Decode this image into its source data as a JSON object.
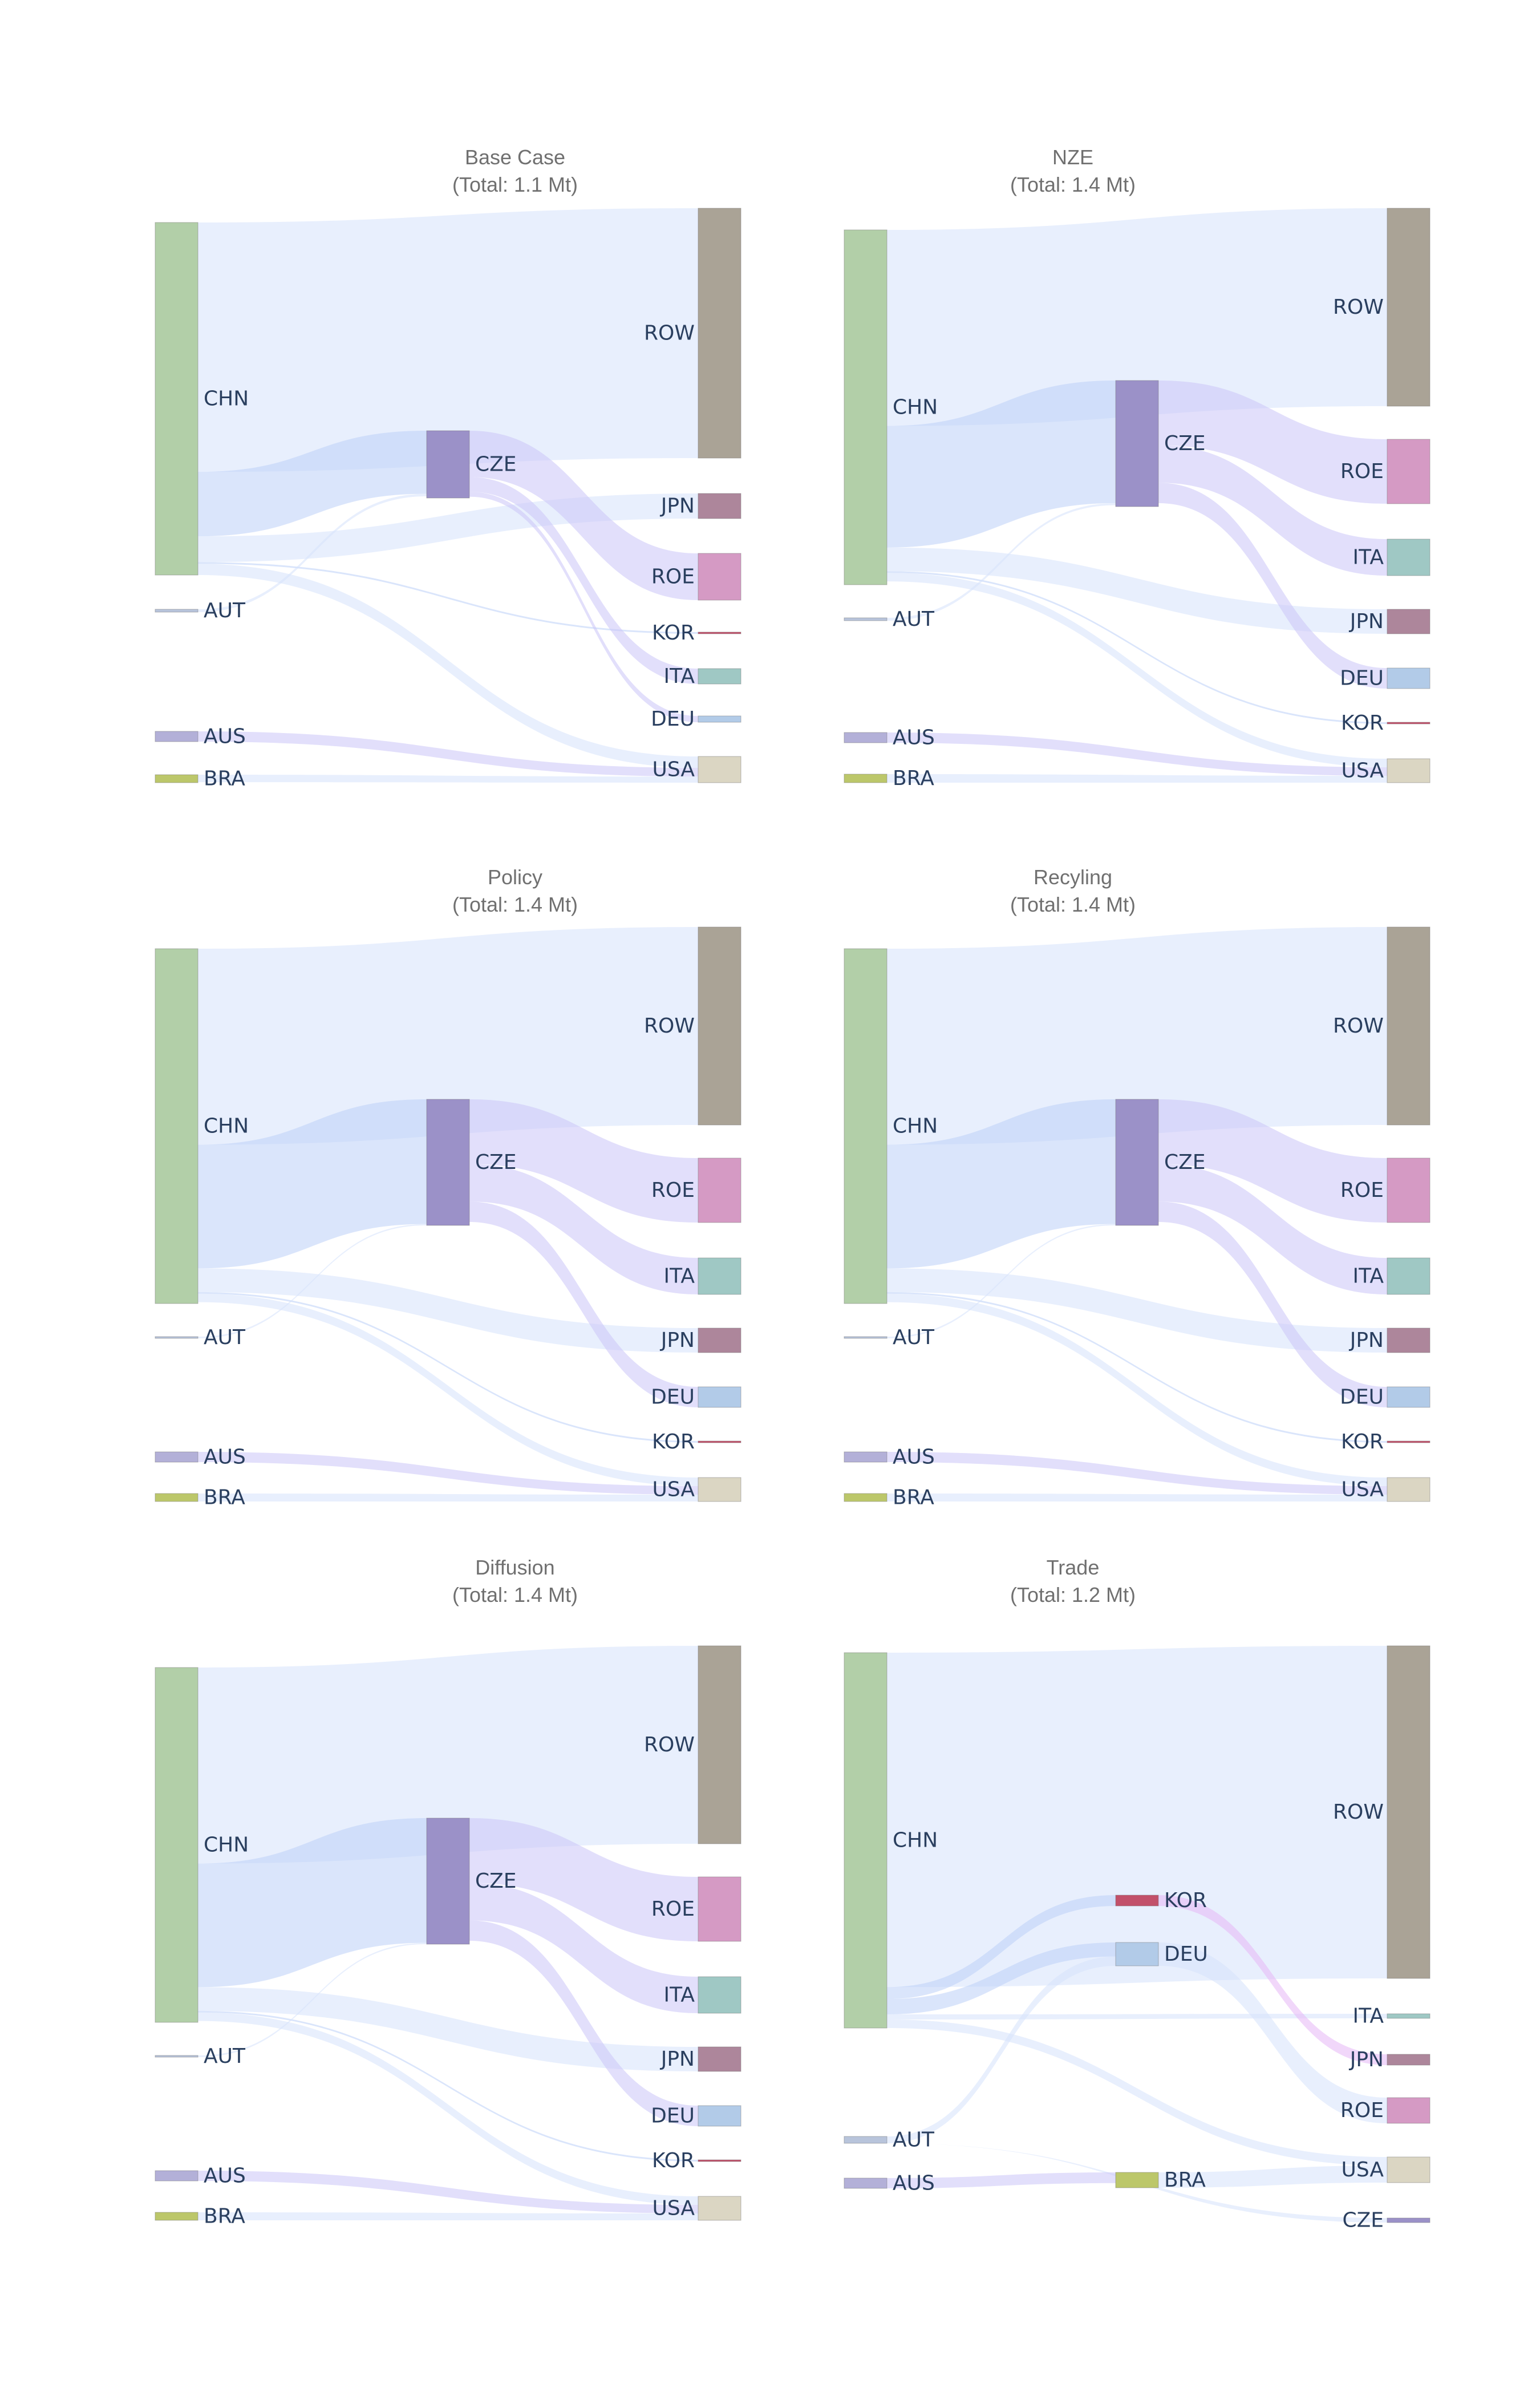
{
  "colors": {
    "CHN": "#b2cfa8",
    "AUT": "#b8c4db",
    "AUS": "#b3b0d8",
    "BRA": "#bcc76a",
    "CZE": "#9b91c8",
    "ROW": "#aaa396",
    "JPN": "#ad869b",
    "ROE": "#d59ac4",
    "KOR": "#c2506a",
    "ITA": "#9fc8c4",
    "DEU": "#b2cbe8",
    "USA": "#dbd6c3",
    "link_light": "#d6e2fb",
    "link_blue": "#bcd0f8",
    "link_purple": "#cbc4f8",
    "link_pink": "#e5b6f5"
  },
  "panels": [
    {
      "title": "Base Case",
      "subtitle": "(Total: 1.1 Mt)",
      "nodes": [
        {
          "id": "CHN",
          "label": "CHN",
          "col": 0,
          "value": 0.82
        },
        {
          "id": "AUT",
          "label": "AUT",
          "col": 0,
          "value": 0.006
        },
        {
          "id": "AUS",
          "label": "AUS",
          "col": 0,
          "value": 0.02
        },
        {
          "id": "BRA",
          "label": "BRA",
          "col": 0,
          "value": 0.015
        },
        {
          "id": "CZE",
          "label": "CZE",
          "col": 1,
          "value": 0.16
        },
        {
          "id": "ROW",
          "label": "ROW",
          "col": 2,
          "value": 0.58
        },
        {
          "id": "JPN",
          "label": "JPN",
          "col": 2,
          "value": 0.06
        },
        {
          "id": "ROE",
          "label": "ROE",
          "col": 2,
          "value": 0.11
        },
        {
          "id": "KOR",
          "label": "KOR",
          "col": 2,
          "value": 0.004
        },
        {
          "id": "ITA",
          "label": "ITA",
          "col": 2,
          "value": 0.035
        },
        {
          "id": "DEU",
          "label": "DEU",
          "col": 2,
          "value": 0.012
        },
        {
          "id": "USA",
          "label": "USA",
          "col": 2,
          "value": 0.06
        }
      ],
      "links": [
        {
          "source": "CHN",
          "target": "ROW",
          "value": 0.58
        },
        {
          "source": "CHN",
          "target": "CZE",
          "value": 0.15
        },
        {
          "source": "CHN",
          "target": "JPN",
          "value": 0.06
        },
        {
          "source": "CHN",
          "target": "KOR",
          "value": 0.004
        },
        {
          "source": "CHN",
          "target": "USA",
          "value": 0.026
        },
        {
          "source": "AUT",
          "target": "CZE",
          "value": 0.006
        },
        {
          "source": "AUS",
          "target": "USA",
          "value": 0.02
        },
        {
          "source": "BRA",
          "target": "USA",
          "value": 0.014
        },
        {
          "source": "CZE",
          "target": "ROE",
          "value": 0.11
        },
        {
          "source": "CZE",
          "target": "ITA",
          "value": 0.035
        },
        {
          "source": "CZE",
          "target": "DEU",
          "value": 0.012
        }
      ]
    },
    {
      "title": "NZE",
      "subtitle": "(Total: 1.4 Mt)",
      "nodes": [
        {
          "id": "CHN",
          "label": "CHN",
          "col": 0,
          "value": 1.05
        },
        {
          "id": "AUT",
          "label": "AUT",
          "col": 0,
          "value": 0.006
        },
        {
          "id": "AUS",
          "label": "AUS",
          "col": 0,
          "value": 0.025
        },
        {
          "id": "BRA",
          "label": "BRA",
          "col": 0,
          "value": 0.02
        },
        {
          "id": "CZE",
          "label": "CZE",
          "col": 1,
          "value": 0.37
        },
        {
          "id": "ROW",
          "label": "ROW",
          "col": 2,
          "value": 0.58
        },
        {
          "id": "ROE",
          "label": "ROE",
          "col": 2,
          "value": 0.19
        },
        {
          "id": "ITA",
          "label": "ITA",
          "col": 2,
          "value": 0.11
        },
        {
          "id": "JPN",
          "label": "JPN",
          "col": 2,
          "value": 0.07
        },
        {
          "id": "DEU",
          "label": "DEU",
          "col": 2,
          "value": 0.06
        },
        {
          "id": "KOR",
          "label": "KOR",
          "col": 2,
          "value": 0.005
        },
        {
          "id": "USA",
          "label": "USA",
          "col": 2,
          "value": 0.07
        }
      ],
      "links": [
        {
          "source": "CHN",
          "target": "ROW",
          "value": 0.58
        },
        {
          "source": "CHN",
          "target": "CZE",
          "value": 0.36
        },
        {
          "source": "CHN",
          "target": "JPN",
          "value": 0.07
        },
        {
          "source": "CHN",
          "target": "KOR",
          "value": 0.005
        },
        {
          "source": "CHN",
          "target": "USA",
          "value": 0.025
        },
        {
          "source": "AUT",
          "target": "CZE",
          "value": 0.006
        },
        {
          "source": "AUS",
          "target": "USA",
          "value": 0.025
        },
        {
          "source": "BRA",
          "target": "USA",
          "value": 0.02
        },
        {
          "source": "CZE",
          "target": "ROE",
          "value": 0.19
        },
        {
          "source": "CZE",
          "target": "ITA",
          "value": 0.11
        },
        {
          "source": "CZE",
          "target": "DEU",
          "value": 0.06
        }
      ]
    },
    {
      "title": "Policy",
      "subtitle": "(Total: 1.4 Mt)",
      "nodes": [
        {
          "id": "CHN",
          "label": "CHN",
          "col": 0,
          "value": 1.05
        },
        {
          "id": "AUT",
          "label": "AUT",
          "col": 0,
          "value": 0.004
        },
        {
          "id": "AUS",
          "label": "AUS",
          "col": 0,
          "value": 0.025
        },
        {
          "id": "BRA",
          "label": "BRA",
          "col": 0,
          "value": 0.02
        },
        {
          "id": "CZE",
          "label": "CZE",
          "col": 1,
          "value": 0.37
        },
        {
          "id": "ROW",
          "label": "ROW",
          "col": 2,
          "value": 0.58
        },
        {
          "id": "ROE",
          "label": "ROE",
          "col": 2,
          "value": 0.19
        },
        {
          "id": "ITA",
          "label": "ITA",
          "col": 2,
          "value": 0.11
        },
        {
          "id": "JPN",
          "label": "JPN",
          "col": 2,
          "value": 0.07
        },
        {
          "id": "DEU",
          "label": "DEU",
          "col": 2,
          "value": 0.06
        },
        {
          "id": "KOR",
          "label": "KOR",
          "col": 2,
          "value": 0.005
        },
        {
          "id": "USA",
          "label": "USA",
          "col": 2,
          "value": 0.07
        }
      ],
      "links": [
        {
          "source": "CHN",
          "target": "ROW",
          "value": 0.58
        },
        {
          "source": "CHN",
          "target": "CZE",
          "value": 0.366
        },
        {
          "source": "CHN",
          "target": "JPN",
          "value": 0.07
        },
        {
          "source": "CHN",
          "target": "KOR",
          "value": 0.005
        },
        {
          "source": "CHN",
          "target": "USA",
          "value": 0.025
        },
        {
          "source": "AUT",
          "target": "CZE",
          "value": 0.004
        },
        {
          "source": "AUS",
          "target": "USA",
          "value": 0.025
        },
        {
          "source": "BRA",
          "target": "USA",
          "value": 0.02
        },
        {
          "source": "CZE",
          "target": "ROE",
          "value": 0.19
        },
        {
          "source": "CZE",
          "target": "ITA",
          "value": 0.11
        },
        {
          "source": "CZE",
          "target": "DEU",
          "value": 0.06
        }
      ]
    },
    {
      "title": "Recyling",
      "subtitle": "(Total: 1.4 Mt)",
      "nodes": [
        {
          "id": "CHN",
          "label": "CHN",
          "col": 0,
          "value": 1.05
        },
        {
          "id": "AUT",
          "label": "AUT",
          "col": 0,
          "value": 0.004
        },
        {
          "id": "AUS",
          "label": "AUS",
          "col": 0,
          "value": 0.025
        },
        {
          "id": "BRA",
          "label": "BRA",
          "col": 0,
          "value": 0.02
        },
        {
          "id": "CZE",
          "label": "CZE",
          "col": 1,
          "value": 0.37
        },
        {
          "id": "ROW",
          "label": "ROW",
          "col": 2,
          "value": 0.58
        },
        {
          "id": "ROE",
          "label": "ROE",
          "col": 2,
          "value": 0.19
        },
        {
          "id": "ITA",
          "label": "ITA",
          "col": 2,
          "value": 0.11
        },
        {
          "id": "JPN",
          "label": "JPN",
          "col": 2,
          "value": 0.07
        },
        {
          "id": "DEU",
          "label": "DEU",
          "col": 2,
          "value": 0.06
        },
        {
          "id": "KOR",
          "label": "KOR",
          "col": 2,
          "value": 0.005
        },
        {
          "id": "USA",
          "label": "USA",
          "col": 2,
          "value": 0.07
        }
      ],
      "links": [
        {
          "source": "CHN",
          "target": "ROW",
          "value": 0.58
        },
        {
          "source": "CHN",
          "target": "CZE",
          "value": 0.366
        },
        {
          "source": "CHN",
          "target": "JPN",
          "value": 0.07
        },
        {
          "source": "CHN",
          "target": "KOR",
          "value": 0.005
        },
        {
          "source": "CHN",
          "target": "USA",
          "value": 0.025
        },
        {
          "source": "AUT",
          "target": "CZE",
          "value": 0.004
        },
        {
          "source": "AUS",
          "target": "USA",
          "value": 0.025
        },
        {
          "source": "BRA",
          "target": "USA",
          "value": 0.02
        },
        {
          "source": "CZE",
          "target": "ROE",
          "value": 0.19
        },
        {
          "source": "CZE",
          "target": "ITA",
          "value": 0.11
        },
        {
          "source": "CZE",
          "target": "DEU",
          "value": 0.06
        }
      ]
    },
    {
      "title": "Diffusion",
      "subtitle": "(Total: 1.4 Mt)",
      "nodes": [
        {
          "id": "CHN",
          "label": "CHN",
          "col": 0,
          "value": 1.05
        },
        {
          "id": "AUT",
          "label": "AUT",
          "col": 0,
          "value": 0.004
        },
        {
          "id": "AUS",
          "label": "AUS",
          "col": 0,
          "value": 0.025
        },
        {
          "id": "BRA",
          "label": "BRA",
          "col": 0,
          "value": 0.02
        },
        {
          "id": "CZE",
          "label": "CZE",
          "col": 1,
          "value": 0.37
        },
        {
          "id": "ROW",
          "label": "ROW",
          "col": 2,
          "value": 0.58
        },
        {
          "id": "ROE",
          "label": "ROE",
          "col": 2,
          "value": 0.19
        },
        {
          "id": "ITA",
          "label": "ITA",
          "col": 2,
          "value": 0.11
        },
        {
          "id": "JPN",
          "label": "JPN",
          "col": 2,
          "value": 0.07
        },
        {
          "id": "DEU",
          "label": "DEU",
          "col": 2,
          "value": 0.06
        },
        {
          "id": "KOR",
          "label": "KOR",
          "col": 2,
          "value": 0.005
        },
        {
          "id": "USA",
          "label": "USA",
          "col": 2,
          "value": 0.07
        }
      ],
      "links": [
        {
          "source": "CHN",
          "target": "ROW",
          "value": 0.58
        },
        {
          "source": "CHN",
          "target": "CZE",
          "value": 0.366
        },
        {
          "source": "CHN",
          "target": "JPN",
          "value": 0.07
        },
        {
          "source": "CHN",
          "target": "KOR",
          "value": 0.005
        },
        {
          "source": "CHN",
          "target": "USA",
          "value": 0.025
        },
        {
          "source": "AUT",
          "target": "CZE",
          "value": 0.004
        },
        {
          "source": "AUS",
          "target": "USA",
          "value": 0.025
        },
        {
          "source": "BRA",
          "target": "USA",
          "value": 0.02
        },
        {
          "source": "CZE",
          "target": "ROE",
          "value": 0.19
        },
        {
          "source": "CZE",
          "target": "ITA",
          "value": 0.11
        },
        {
          "source": "CZE",
          "target": "DEU",
          "value": 0.06
        }
      ]
    },
    {
      "title": "Trade",
      "subtitle": "(Total: 1.2 Mt)",
      "nodes": [
        {
          "id": "CHN",
          "label": "CHN",
          "col": 0,
          "value": 1.1
        },
        {
          "id": "AUT",
          "label": "AUT",
          "col": 0,
          "value": 0.03
        },
        {
          "id": "AUS",
          "label": "AUS",
          "col": 0,
          "value": 0.035
        },
        {
          "id": "KOR",
          "label": "KOR",
          "col": 1,
          "value": 0.035
        },
        {
          "id": "DEU",
          "label": "DEU",
          "col": 1,
          "value": 0.075
        },
        {
          "id": "BRA",
          "label": "BRA",
          "col": 1,
          "value": 0.05
        },
        {
          "id": "ROW",
          "label": "ROW",
          "col": 2,
          "value": 0.98
        },
        {
          "id": "ITA",
          "label": "ITA",
          "col": 2,
          "value": 0.015
        },
        {
          "id": "JPN",
          "label": "JPN",
          "col": 2,
          "value": 0.035
        },
        {
          "id": "ROE",
          "label": "ROE",
          "col": 2,
          "value": 0.075
        },
        {
          "id": "USA",
          "label": "USA",
          "col": 2,
          "value": 0.075
        },
        {
          "id": "CZE",
          "label": "CZE",
          "col": 2,
          "value": 0.015
        }
      ],
      "links": [
        {
          "source": "CHN",
          "target": "ROW",
          "value": 0.98
        },
        {
          "source": "CHN",
          "target": "KOR",
          "value": 0.035
        },
        {
          "source": "CHN",
          "target": "DEU",
          "value": 0.045
        },
        {
          "source": "CHN",
          "target": "ITA",
          "value": 0.015
        },
        {
          "source": "CHN",
          "target": "USA",
          "value": 0.025
        },
        {
          "source": "AUT",
          "target": "DEU",
          "value": 0.03
        },
        {
          "source": "AUT",
          "target": "CZE",
          "value": 0.015
        },
        {
          "source": "AUS",
          "target": "BRA",
          "value": 0.035
        },
        {
          "source": "KOR",
          "target": "JPN",
          "value": 0.035
        },
        {
          "source": "DEU",
          "target": "ROE",
          "value": 0.075
        },
        {
          "source": "BRA",
          "target": "USA",
          "value": 0.05
        }
      ]
    }
  ]
}
